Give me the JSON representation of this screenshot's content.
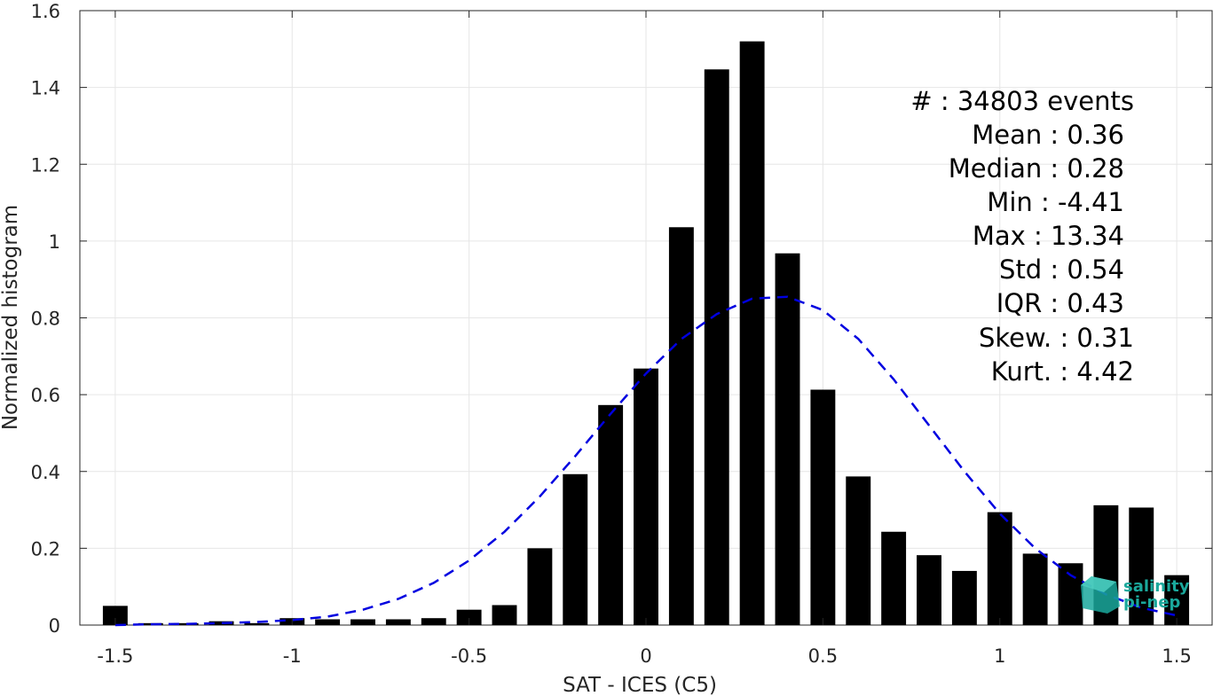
{
  "chart_data": {
    "type": "bar",
    "xlabel": "SAT - ICES (C5)",
    "ylabel": "Normalized histogram",
    "xlim": [
      -1.6,
      1.6
    ],
    "ylim": [
      0,
      1.6
    ],
    "xticks": [
      -1.5,
      -1,
      -0.5,
      0,
      0.5,
      1,
      1.5
    ],
    "xtick_labels": [
      "-1.5",
      "-1",
      "-0.5",
      "0",
      "0.5",
      "1",
      "1.5"
    ],
    "yticks": [
      0,
      0.2,
      0.4,
      0.6,
      0.8,
      1,
      1.2,
      1.4,
      1.6
    ],
    "ytick_labels": [
      "0",
      "0.2",
      "0.4",
      "0.6",
      "0.8",
      "1",
      "1.2",
      "1.4",
      "1.6"
    ],
    "grid": true,
    "bar_color": "#000000",
    "bin_width": 0.1,
    "bar_width_fraction": 0.7,
    "categories": [
      -1.5,
      -1.4,
      -1.3,
      -1.2,
      -1.1,
      -1.0,
      -0.9,
      -0.8,
      -0.7,
      -0.6,
      -0.5,
      -0.4,
      -0.3,
      -0.2,
      -0.1,
      0.0,
      0.1,
      0.2,
      0.3,
      0.4,
      0.5,
      0.6,
      0.7,
      0.8,
      0.9,
      1.0,
      1.1,
      1.2,
      1.3,
      1.4,
      1.5
    ],
    "values": [
      0.05,
      0.005,
      0.005,
      0.01,
      0.005,
      0.018,
      0.015,
      0.015,
      0.015,
      0.018,
      0.04,
      0.052,
      0.2,
      0.393,
      0.573,
      0.668,
      1.036,
      1.447,
      1.52,
      0.968,
      0.613,
      0.387,
      0.243,
      0.182,
      0.141,
      0.294,
      0.186,
      0.161,
      0.312,
      0.306,
      0.13
    ],
    "fit_curve": {
      "style": "dashed",
      "color": "#0000e0",
      "x": [
        -1.5,
        -1.4,
        -1.3,
        -1.2,
        -1.1,
        -1.0,
        -0.9,
        -0.8,
        -0.7,
        -0.6,
        -0.5,
        -0.4,
        -0.3,
        -0.2,
        -0.1,
        0.0,
        0.1,
        0.2,
        0.3,
        0.4,
        0.5,
        0.6,
        0.7,
        0.8,
        0.9,
        1.0,
        1.1,
        1.2,
        1.3,
        1.4,
        1.5
      ],
      "y": [
        0.0,
        0.002,
        0.003,
        0.005,
        0.008,
        0.013,
        0.022,
        0.04,
        0.068,
        0.11,
        0.168,
        0.243,
        0.335,
        0.44,
        0.55,
        0.655,
        0.745,
        0.81,
        0.85,
        0.855,
        0.82,
        0.745,
        0.64,
        0.52,
        0.4,
        0.29,
        0.2,
        0.13,
        0.08,
        0.045,
        0.025
      ]
    },
    "stats": [
      {
        "label": "#  : 34803 events"
      },
      {
        "label": "Mean : 0.36"
      },
      {
        "label": "Median : 0.28"
      },
      {
        "label": "Min : -4.41"
      },
      {
        "label": "Max : 13.34"
      },
      {
        "label": "Std : 0.54"
      },
      {
        "label": "IQR : 0.43"
      },
      {
        "label": "Skew. : 0.31"
      },
      {
        "label": "Kurt. : 4.42"
      }
    ]
  },
  "logo": {
    "line1": "salinity",
    "line2": "pi-nep",
    "color": "#1aa89c"
  }
}
